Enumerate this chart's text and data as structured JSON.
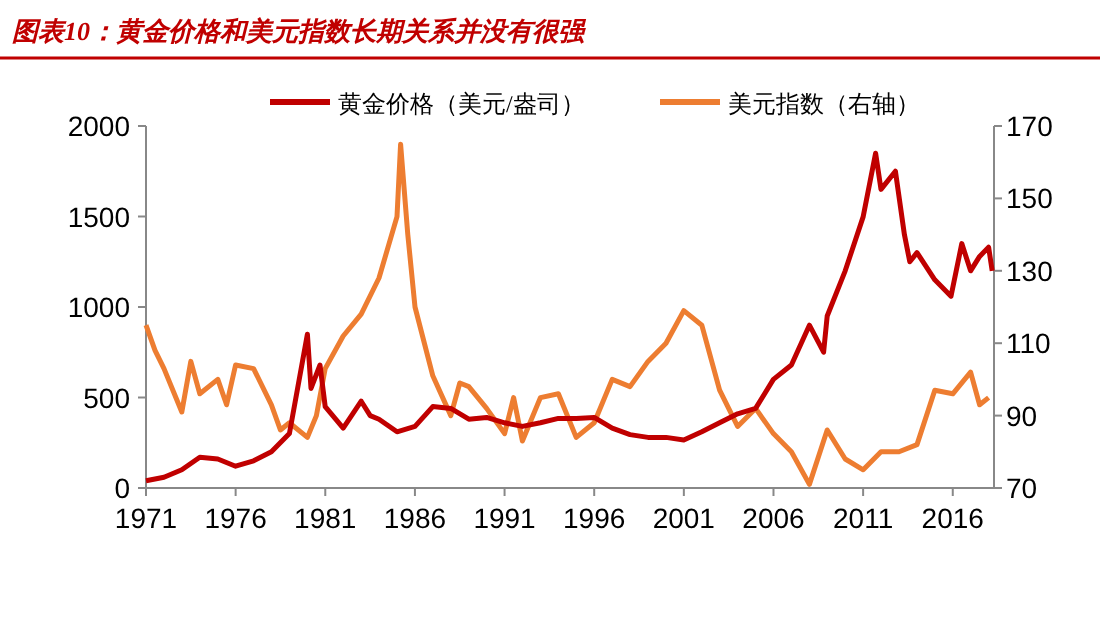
{
  "chart_data": {
    "type": "line",
    "title": "图表10：黄金价格和美元指数长期关系并没有很强",
    "xlim": [
      1971,
      2018.3
    ],
    "xticks": [
      1971,
      1976,
      1981,
      1986,
      1991,
      1996,
      2001,
      2006,
      2011,
      2016
    ],
    "ylim": [
      0,
      2000
    ],
    "yticks": [
      0,
      500,
      1000,
      1500,
      2000
    ],
    "y2lim": [
      70,
      170
    ],
    "y2ticks": [
      70,
      90,
      110,
      130,
      150,
      170
    ],
    "grid": false,
    "legend": "top",
    "series": [
      {
        "name": "黄金价格（美元/盎司）",
        "color": "#c00000",
        "x": [
          1971,
          1972,
          1973,
          1974,
          1975,
          1976,
          1977,
          1978,
          1979,
          1980,
          1980.2,
          1980.7,
          1981,
          1982,
          1983,
          1983.5,
          1984,
          1985,
          1986,
          1987,
          1988,
          1989,
          1990,
          1991,
          1992,
          1993,
          1994,
          1995,
          1996,
          1997,
          1998,
          1999,
          2000,
          2001,
          2002,
          2003,
          2004,
          2005,
          2006,
          2007,
          2008,
          2008.8,
          2009,
          2010,
          2011,
          2011.7,
          2012,
          2012.8,
          2013.3,
          2013.6,
          2014,
          2015,
          2015.9,
          2016.5,
          2017,
          2017.5,
          2018,
          2018.2
        ],
        "values": [
          40,
          60,
          100,
          170,
          160,
          120,
          150,
          200,
          300,
          850,
          550,
          680,
          450,
          330,
          480,
          400,
          380,
          310,
          340,
          450,
          440,
          380,
          390,
          360,
          340,
          360,
          385,
          385,
          390,
          330,
          295,
          280,
          280,
          265,
          310,
          360,
          410,
          440,
          600,
          680,
          900,
          750,
          950,
          1200,
          1500,
          1850,
          1650,
          1750,
          1400,
          1250,
          1300,
          1150,
          1060,
          1350,
          1200,
          1280,
          1330,
          1200
        ]
      },
      {
        "name": "美元指数（右轴）",
        "color": "#ed7d31",
        "axis": "y2",
        "x": [
          1971,
          1971.5,
          1972,
          1973,
          1973.5,
          1974,
          1975,
          1975.5,
          1976,
          1977,
          1978,
          1978.5,
          1979,
          1980,
          1980.5,
          1981,
          1982,
          1983,
          1984,
          1985,
          1985.2,
          1985.6,
          1986,
          1987,
          1988,
          1988.5,
          1989,
          1990,
          1991,
          1991.5,
          1992,
          1993,
          1994,
          1995,
          1996,
          1997,
          1998,
          1999,
          2000,
          2001,
          2002,
          2003,
          2004,
          2005,
          2006,
          2007,
          2008,
          2009,
          2010,
          2011,
          2012,
          2013,
          2014,
          2015,
          2016,
          2017,
          2017.5,
          2018
        ],
        "values": [
          115,
          108,
          103,
          91,
          105,
          96,
          100,
          93,
          104,
          103,
          93,
          86,
          88,
          84,
          90,
          103,
          112,
          118,
          128,
          145,
          165,
          140,
          120,
          101,
          90,
          99,
          98,
          92,
          85,
          95,
          83,
          95,
          96,
          84,
          88,
          100,
          98,
          105,
          110,
          119,
          115,
          97,
          87,
          92,
          85,
          80,
          71,
          86,
          78,
          75,
          80,
          80,
          82,
          97,
          96,
          102,
          93,
          95
        ]
      }
    ]
  }
}
